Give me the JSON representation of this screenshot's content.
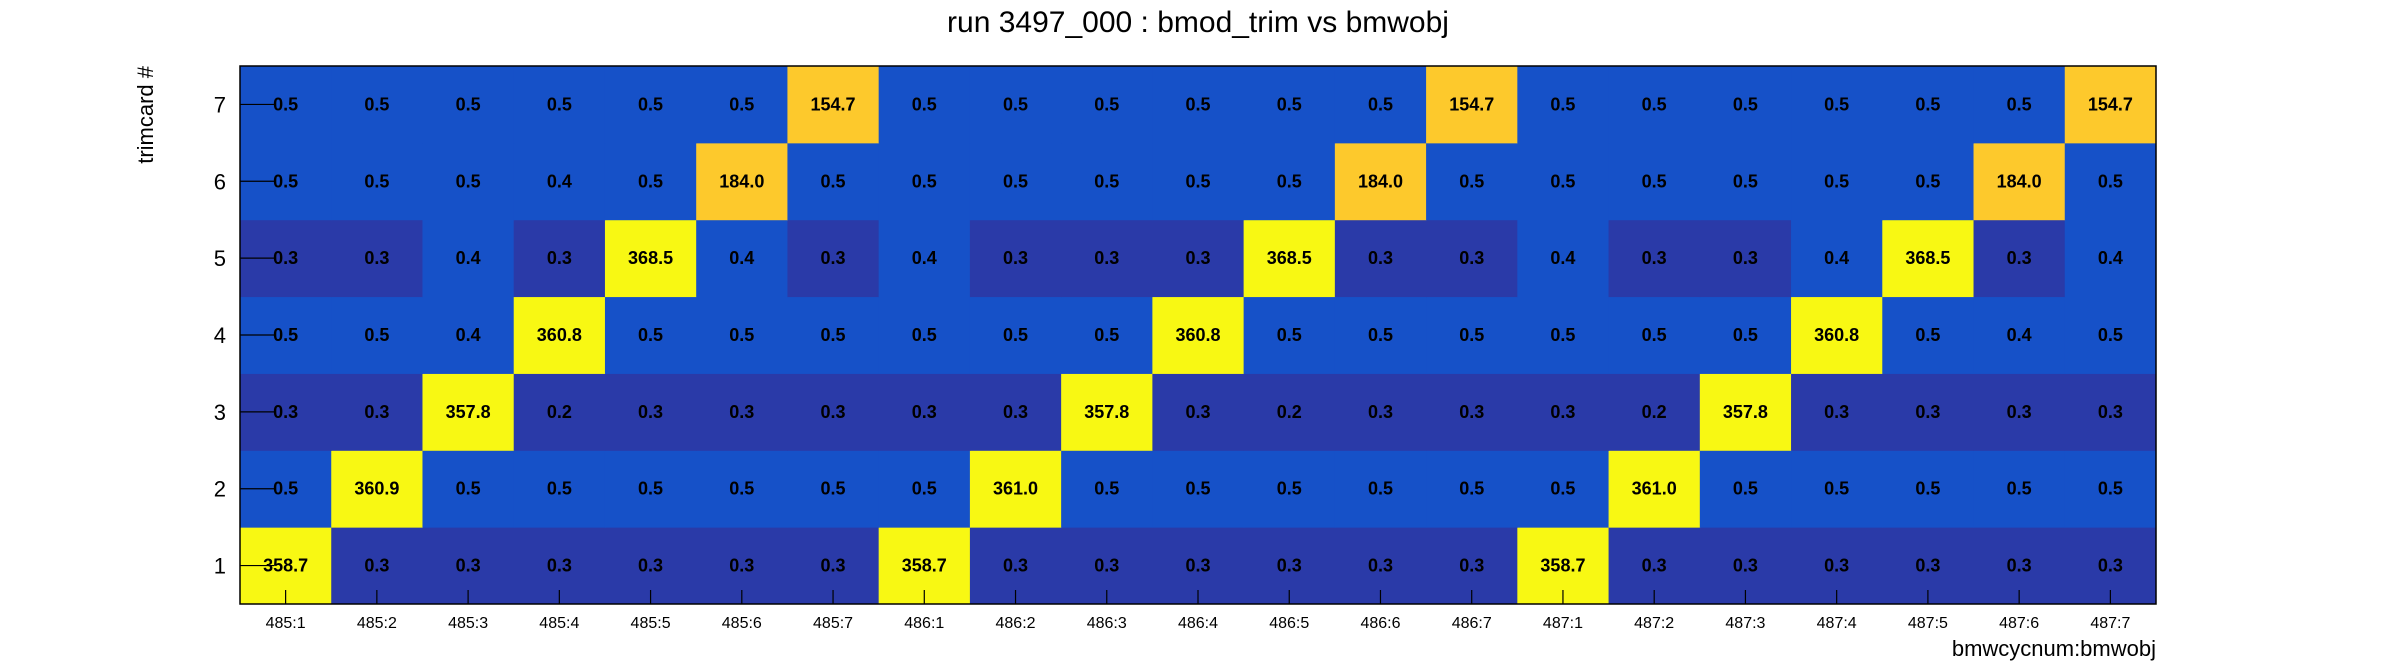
{
  "chart_data": {
    "type": "heatmap",
    "title": "run 3497_000 : bmod_trim vs bmwobj",
    "xlabel": "bmwcycnum:bmwobj",
    "ylabel": "trimcard #",
    "x_categories": [
      "485:1",
      "485:2",
      "485:3",
      "485:4",
      "485:5",
      "485:6",
      "485:7",
      "486:1",
      "486:2",
      "486:3",
      "486:4",
      "486:5",
      "486:6",
      "486:7",
      "487:1",
      "487:2",
      "487:3",
      "487:4",
      "487:5",
      "487:6",
      "487:7"
    ],
    "y_categories": [
      "1",
      "2",
      "3",
      "4",
      "5",
      "6",
      "7"
    ],
    "values": [
      [
        358.7,
        0.3,
        0.3,
        0.3,
        0.3,
        0.3,
        0.3,
        358.7,
        0.3,
        0.3,
        0.3,
        0.3,
        0.3,
        0.3,
        358.7,
        0.3,
        0.3,
        0.3,
        0.3,
        0.3,
        0.3
      ],
      [
        0.5,
        360.9,
        0.5,
        0.5,
        0.5,
        0.5,
        0.5,
        0.5,
        361.0,
        0.5,
        0.5,
        0.5,
        0.5,
        0.5,
        0.5,
        361.0,
        0.5,
        0.5,
        0.5,
        0.5,
        0.5
      ],
      [
        0.3,
        0.3,
        357.8,
        0.2,
        0.3,
        0.3,
        0.3,
        0.3,
        0.3,
        357.8,
        0.3,
        0.2,
        0.3,
        0.3,
        0.3,
        0.2,
        357.8,
        0.3,
        0.3,
        0.3,
        0.3
      ],
      [
        0.5,
        0.5,
        0.4,
        360.8,
        0.5,
        0.5,
        0.5,
        0.5,
        0.5,
        0.5,
        360.8,
        0.5,
        0.5,
        0.5,
        0.5,
        0.5,
        0.5,
        360.8,
        0.5,
        0.4,
        0.5
      ],
      [
        0.3,
        0.3,
        0.4,
        0.3,
        368.5,
        0.4,
        0.3,
        0.4,
        0.3,
        0.3,
        0.3,
        368.5,
        0.3,
        0.3,
        0.4,
        0.3,
        0.3,
        0.4,
        368.5,
        0.3,
        0.4
      ],
      [
        0.5,
        0.5,
        0.5,
        0.4,
        0.5,
        184.0,
        0.5,
        0.5,
        0.5,
        0.5,
        0.5,
        0.5,
        184.0,
        0.5,
        0.5,
        0.5,
        0.5,
        0.5,
        0.5,
        184.0,
        0.5
      ],
      [
        0.5,
        0.5,
        0.5,
        0.5,
        0.5,
        0.5,
        154.7,
        0.5,
        0.5,
        0.5,
        0.5,
        0.5,
        0.5,
        154.7,
        0.5,
        0.5,
        0.5,
        0.5,
        0.5,
        0.5,
        154.7
      ]
    ],
    "colors": {
      "low_dark": "#2a3aa8",
      "low_blue": "#1651c8",
      "mid_gold": "#fdc92c",
      "high_yellow": "#f8f813"
    }
  }
}
